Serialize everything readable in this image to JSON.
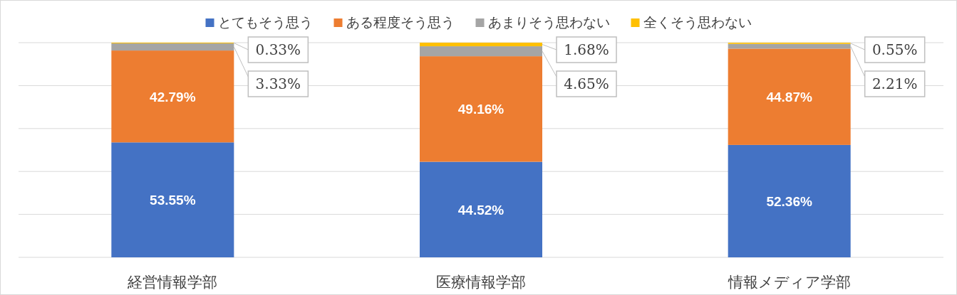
{
  "chart_data": {
    "type": "bar",
    "stacked": true,
    "categories": [
      "経営情報学部",
      "医療情報学部",
      "情報メディア学部"
    ],
    "series": [
      {
        "name": "とてもそう思う",
        "color": "#4472c4",
        "values": [
          53.55,
          44.52,
          52.36
        ],
        "value_labels": [
          "53.55%",
          "44.52%",
          "52.36%"
        ]
      },
      {
        "name": "ある程度そう思う",
        "color": "#ed7d31",
        "values": [
          42.79,
          49.16,
          44.87
        ],
        "value_labels": [
          "42.79%",
          "49.16%",
          "44.87%"
        ]
      },
      {
        "name": "あまりそう思わない",
        "color": "#a5a5a5",
        "values": [
          3.33,
          4.65,
          2.21
        ],
        "value_labels": [
          "3.33%",
          "4.65%",
          "2.21%"
        ]
      },
      {
        "name": "全くそう思わない",
        "color": "#ffc000",
        "values": [
          0.33,
          1.68,
          0.55
        ],
        "value_labels": [
          "0.33%",
          "1.68%",
          "0.55%"
        ]
      }
    ],
    "ylim": [
      0,
      100.01
    ],
    "yticks": [
      {
        "value": 0,
        "label": null
      },
      {
        "value": 20,
        "label": null
      },
      {
        "value": 40,
        "label": null
      },
      {
        "value": 60,
        "label": null
      },
      {
        "value": 80,
        "label": null
      },
      {
        "value": 100,
        "label": null
      }
    ],
    "tick_labels": "x",
    "grid": "y",
    "legend": "top"
  }
}
